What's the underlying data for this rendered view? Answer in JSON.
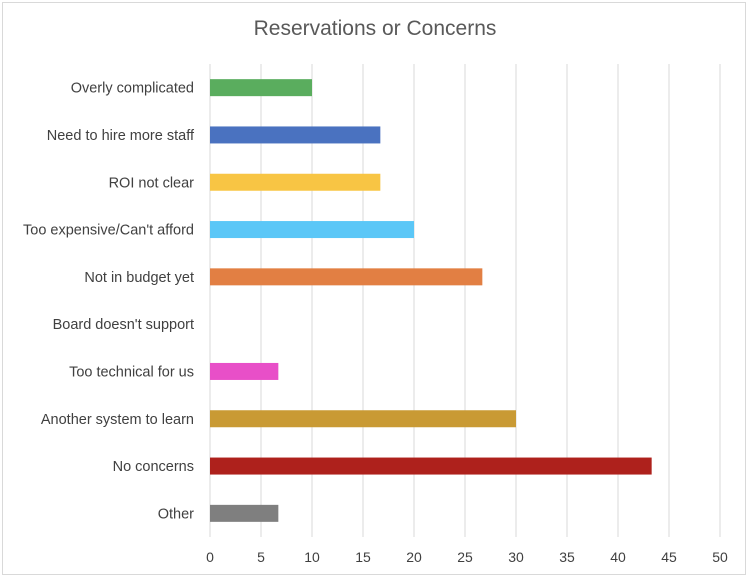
{
  "chart_data": {
    "type": "bar",
    "orientation": "horizontal",
    "title": "Reservations or Concerns",
    "xlabel": "",
    "ylabel": "",
    "categories": [
      "Overly complicated",
      "Need to hire more staff",
      "ROI not clear",
      "Too expensive/Can't afford",
      "Not in budget yet",
      "Board doesn't support",
      "Too technical for us",
      "Another system to learn",
      "No concerns",
      "Other"
    ],
    "values": [
      10,
      16.7,
      16.7,
      20,
      26.7,
      0,
      6.7,
      30,
      43.3,
      6.7
    ],
    "colors": [
      "#5aad5e",
      "#4a72c0",
      "#f8c544",
      "#5bc7f7",
      "#e27f43",
      "#999999",
      "#e84fc8",
      "#c99a34",
      "#ae211c",
      "#7f7f7f"
    ],
    "xlim": [
      0,
      50
    ],
    "xticks": [
      0,
      5,
      10,
      15,
      20,
      25,
      30,
      35,
      40,
      45,
      50
    ],
    "grid": true,
    "legend": "none"
  }
}
